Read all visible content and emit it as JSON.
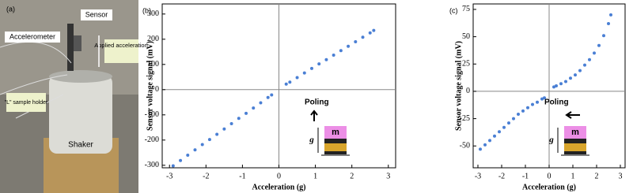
{
  "photo": {
    "panel_label": "(a)",
    "labels": {
      "sensor": "Sensor",
      "accelerometer": "Accelerometer",
      "applied": "Applied acceleration",
      "holder": "\"L\" sample holder",
      "shaker": "Shaker"
    }
  },
  "chart_data": [
    {
      "type": "scatter",
      "panel_label": "(b)",
      "xlabel": "Acceleration (g)",
      "ylabel": "Sensor voltage signal (mV)",
      "x": [
        -2.9,
        -2.7,
        -2.5,
        -2.3,
        -2.1,
        -1.9,
        -1.7,
        -1.5,
        -1.3,
        -1.1,
        -0.9,
        -0.7,
        -0.5,
        -0.3,
        -0.2,
        0.2,
        0.3,
        0.5,
        0.7,
        0.9,
        1.1,
        1.3,
        1.5,
        1.7,
        1.9,
        2.1,
        2.3,
        2.5,
        2.6
      ],
      "series": [
        {
          "color": "#4a7fd4",
          "values": [
            -302,
            -281,
            -260,
            -239,
            -218,
            -198,
            -177,
            -156,
            -135,
            -114,
            -94,
            -73,
            -52,
            -31,
            -21,
            22,
            30,
            48,
            66,
            84,
            102,
            119,
            137,
            155,
            172,
            190,
            208,
            225,
            235
          ]
        }
      ],
      "xlim": [
        -3.2,
        3.2
      ],
      "ylim": [
        -310,
        340
      ],
      "xticks": [
        -3,
        -2,
        -1,
        0,
        1,
        2,
        3
      ],
      "yticks": [
        -300,
        -200,
        -100,
        0,
        100,
        200,
        300
      ],
      "annotations": {
        "poling": "Poling",
        "mass": "m",
        "gravity": "g"
      }
    },
    {
      "type": "scatter",
      "panel_label": "(c)",
      "xlabel": "Acceleration (g)",
      "ylabel": "Sensor voltage signal (mV)",
      "x": [
        -2.9,
        -2.7,
        -2.5,
        -2.3,
        -2.1,
        -1.9,
        -1.7,
        -1.5,
        -1.3,
        -1.1,
        -0.9,
        -0.7,
        -0.5,
        -0.3,
        -0.2,
        0.2,
        0.3,
        0.5,
        0.7,
        0.9,
        1.1,
        1.3,
        1.5,
        1.7,
        1.9,
        2.1,
        2.3,
        2.5,
        2.6
      ],
      "series": [
        {
          "color": "#4a7fd4",
          "values": [
            -53,
            -49,
            -45,
            -41,
            -37,
            -33,
            -29,
            -25,
            -21,
            -18,
            -15,
            -12,
            -10,
            -7,
            -6,
            4,
            5,
            7,
            9,
            12,
            15,
            19,
            24,
            29,
            35,
            42,
            51,
            62,
            70
          ]
        }
      ],
      "xlim": [
        -3.2,
        3.2
      ],
      "ylim": [
        -70,
        80
      ],
      "xticks": [
        -3,
        -2,
        -1,
        0,
        1,
        2,
        3
      ],
      "yticks": [
        -50,
        -25,
        0,
        25,
        50,
        75
      ],
      "annotations": {
        "poling": "Poling",
        "mass": "m",
        "gravity": "g"
      }
    }
  ]
}
